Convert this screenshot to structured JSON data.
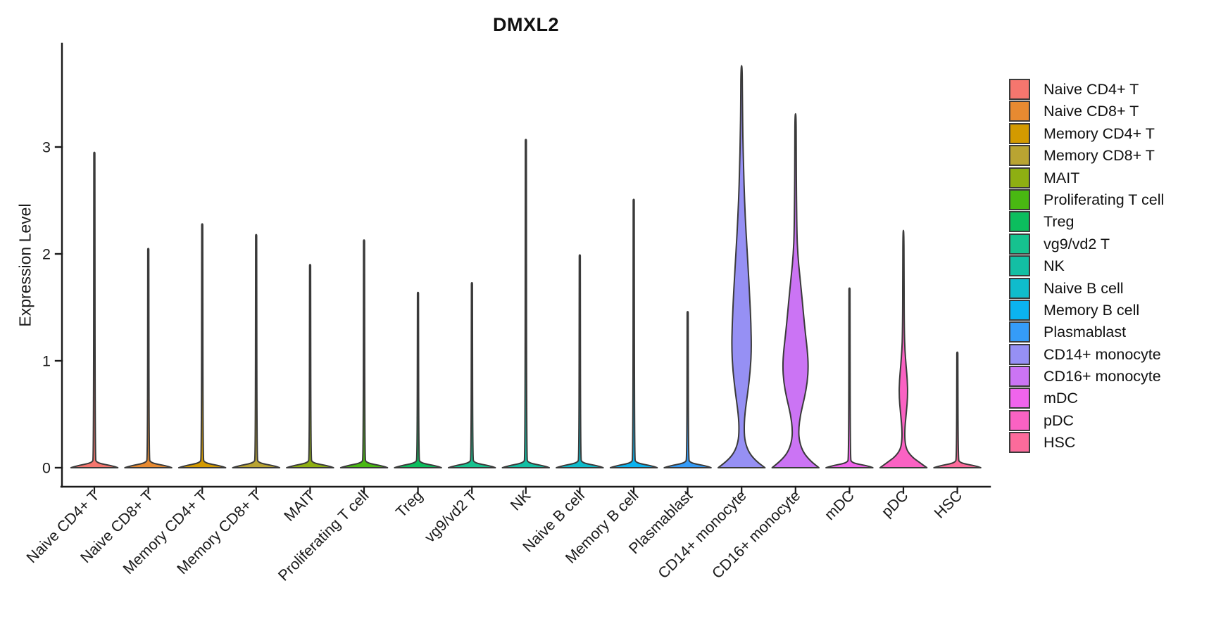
{
  "title": "DMXL2",
  "chart_data": {
    "type": "violin",
    "title": "DMXL2",
    "xlabel": "",
    "ylabel": "Expression Level",
    "yticks": [
      0,
      1,
      2,
      3
    ],
    "ylim": [
      -0.19,
      3.97
    ],
    "grid": false,
    "legend_position": "right",
    "outline_color": "#3a3a3a",
    "axis_color": "#1a1a1a",
    "categories": [
      {
        "label": "Naive CD4+ T",
        "color": "#F5766E",
        "max_expression": 2.95
      },
      {
        "label": "Naive CD8+ T",
        "color": "#E78A31",
        "max_expression": 2.05
      },
      {
        "label": "Memory CD4+ T",
        "color": "#D39A00",
        "max_expression": 2.28
      },
      {
        "label": "Memory CD8+ T",
        "color": "#B9A432",
        "max_expression": 2.18
      },
      {
        "label": "MAIT",
        "color": "#8EAF12",
        "max_expression": 1.9
      },
      {
        "label": "Proliferating T cell",
        "color": "#49B812",
        "max_expression": 2.13
      },
      {
        "label": "Treg",
        "color": "#0CBE5E",
        "max_expression": 1.64
      },
      {
        "label": "vg9/vd2 T",
        "color": "#16C28F",
        "max_expression": 1.73
      },
      {
        "label": "NK",
        "color": "#13BFA4",
        "max_expression": 3.07
      },
      {
        "label": "Naive B cell",
        "color": "#0FBCCC",
        "max_expression": 1.99
      },
      {
        "label": "Memory B cell",
        "color": "#0BB3EF",
        "max_expression": 2.51
      },
      {
        "label": "Plasmablast",
        "color": "#359CF8",
        "max_expression": 1.46
      },
      {
        "label": "CD14+ monocyte",
        "color": "#9690F4",
        "max_expression": 3.76,
        "profile": [
          [
            0,
            0.95
          ],
          [
            0.06,
            0.6
          ],
          [
            0.14,
            0.3
          ],
          [
            0.24,
            0.14
          ],
          [
            0.35,
            0.1
          ],
          [
            0.5,
            0.13
          ],
          [
            0.7,
            0.25
          ],
          [
            0.9,
            0.35
          ],
          [
            1.1,
            0.4
          ],
          [
            1.35,
            0.38
          ],
          [
            1.6,
            0.33
          ],
          [
            1.9,
            0.26
          ],
          [
            2.2,
            0.18
          ],
          [
            2.5,
            0.12
          ],
          [
            2.8,
            0.08
          ],
          [
            3.1,
            0.05
          ],
          [
            3.4,
            0.035
          ],
          [
            3.76,
            0.025
          ]
        ]
      },
      {
        "label": "CD16+ monocyte",
        "color": "#CB74F4",
        "max_expression": 3.31,
        "profile": [
          [
            0,
            0.95
          ],
          [
            0.06,
            0.62
          ],
          [
            0.14,
            0.32
          ],
          [
            0.24,
            0.16
          ],
          [
            0.35,
            0.12
          ],
          [
            0.5,
            0.2
          ],
          [
            0.65,
            0.36
          ],
          [
            0.8,
            0.48
          ],
          [
            0.95,
            0.52
          ],
          [
            1.1,
            0.48
          ],
          [
            1.3,
            0.38
          ],
          [
            1.55,
            0.28
          ],
          [
            1.8,
            0.17
          ],
          [
            2.0,
            0.09
          ],
          [
            2.2,
            0.055
          ],
          [
            2.6,
            0.035
          ],
          [
            3.0,
            0.028
          ],
          [
            3.31,
            0.022
          ]
        ]
      },
      {
        "label": "mDC",
        "color": "#F064EC",
        "max_expression": 1.68
      },
      {
        "label": "pDC",
        "color": "#FA62C3",
        "max_expression": 2.22,
        "profile": [
          [
            0,
            0.95
          ],
          [
            0.05,
            0.65
          ],
          [
            0.1,
            0.35
          ],
          [
            0.17,
            0.12
          ],
          [
            0.26,
            0.055
          ],
          [
            0.38,
            0.06
          ],
          [
            0.52,
            0.12
          ],
          [
            0.67,
            0.175
          ],
          [
            0.82,
            0.16
          ],
          [
            0.95,
            0.11
          ],
          [
            1.1,
            0.06
          ],
          [
            1.25,
            0.04
          ],
          [
            1.5,
            0.03
          ],
          [
            1.8,
            0.025
          ],
          [
            2.22,
            0.02
          ]
        ]
      },
      {
        "label": "HSC",
        "color": "#FC6B9B",
        "max_expression": 1.08
      }
    ]
  }
}
